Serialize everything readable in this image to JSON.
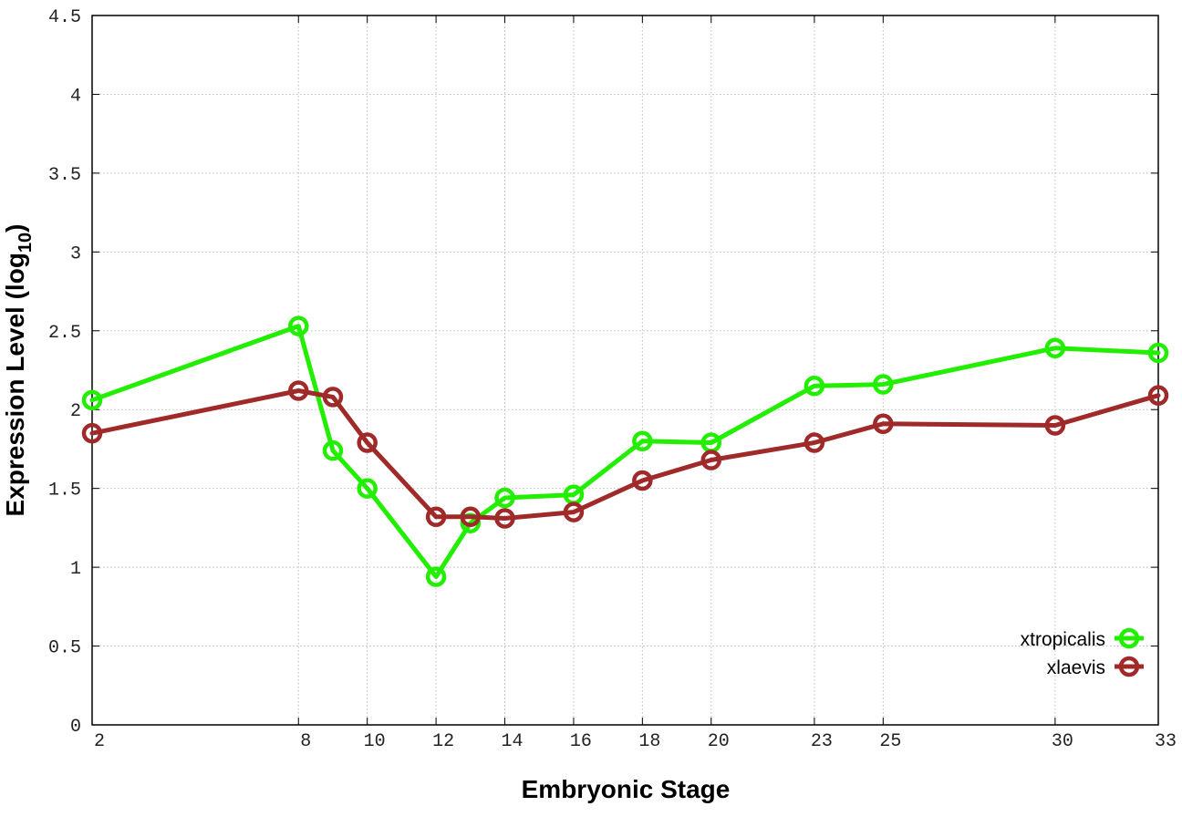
{
  "chart_data": {
    "type": "line",
    "xlabel": "Embryonic Stage",
    "ylabel_main": "Expression Level (log",
    "ylabel_sub": "10",
    "ylabel_close": ")",
    "xlim": [
      2,
      33
    ],
    "ylim": [
      0,
      4.5
    ],
    "xticks": [
      2,
      8,
      10,
      12,
      14,
      16,
      18,
      20,
      23,
      25,
      30,
      33
    ],
    "yticks": [
      0,
      0.5,
      1,
      1.5,
      2,
      2.5,
      3,
      3.5,
      4,
      4.5
    ],
    "ytick_labels": [
      "0",
      "0.5",
      "1",
      "1.5",
      "2",
      "2.5",
      "3",
      "3.5",
      "4",
      "4.5"
    ],
    "grid": true,
    "legend_position": "bottom-right",
    "x": [
      2,
      8,
      9,
      10,
      12,
      13,
      14,
      16,
      18,
      20,
      23,
      25,
      30,
      33
    ],
    "series": [
      {
        "name": "xtropicalis",
        "color": "#22ee00",
        "values": [
          2.06,
          2.53,
          1.74,
          1.5,
          0.94,
          1.28,
          1.44,
          1.46,
          1.8,
          1.79,
          2.15,
          2.16,
          2.39,
          2.36
        ]
      },
      {
        "name": "xlaevis",
        "color": "#a02a2a",
        "values": [
          1.85,
          2.12,
          2.08,
          1.79,
          1.32,
          1.32,
          1.31,
          1.35,
          1.55,
          1.68,
          1.79,
          1.91,
          1.9,
          2.09
        ]
      }
    ]
  }
}
